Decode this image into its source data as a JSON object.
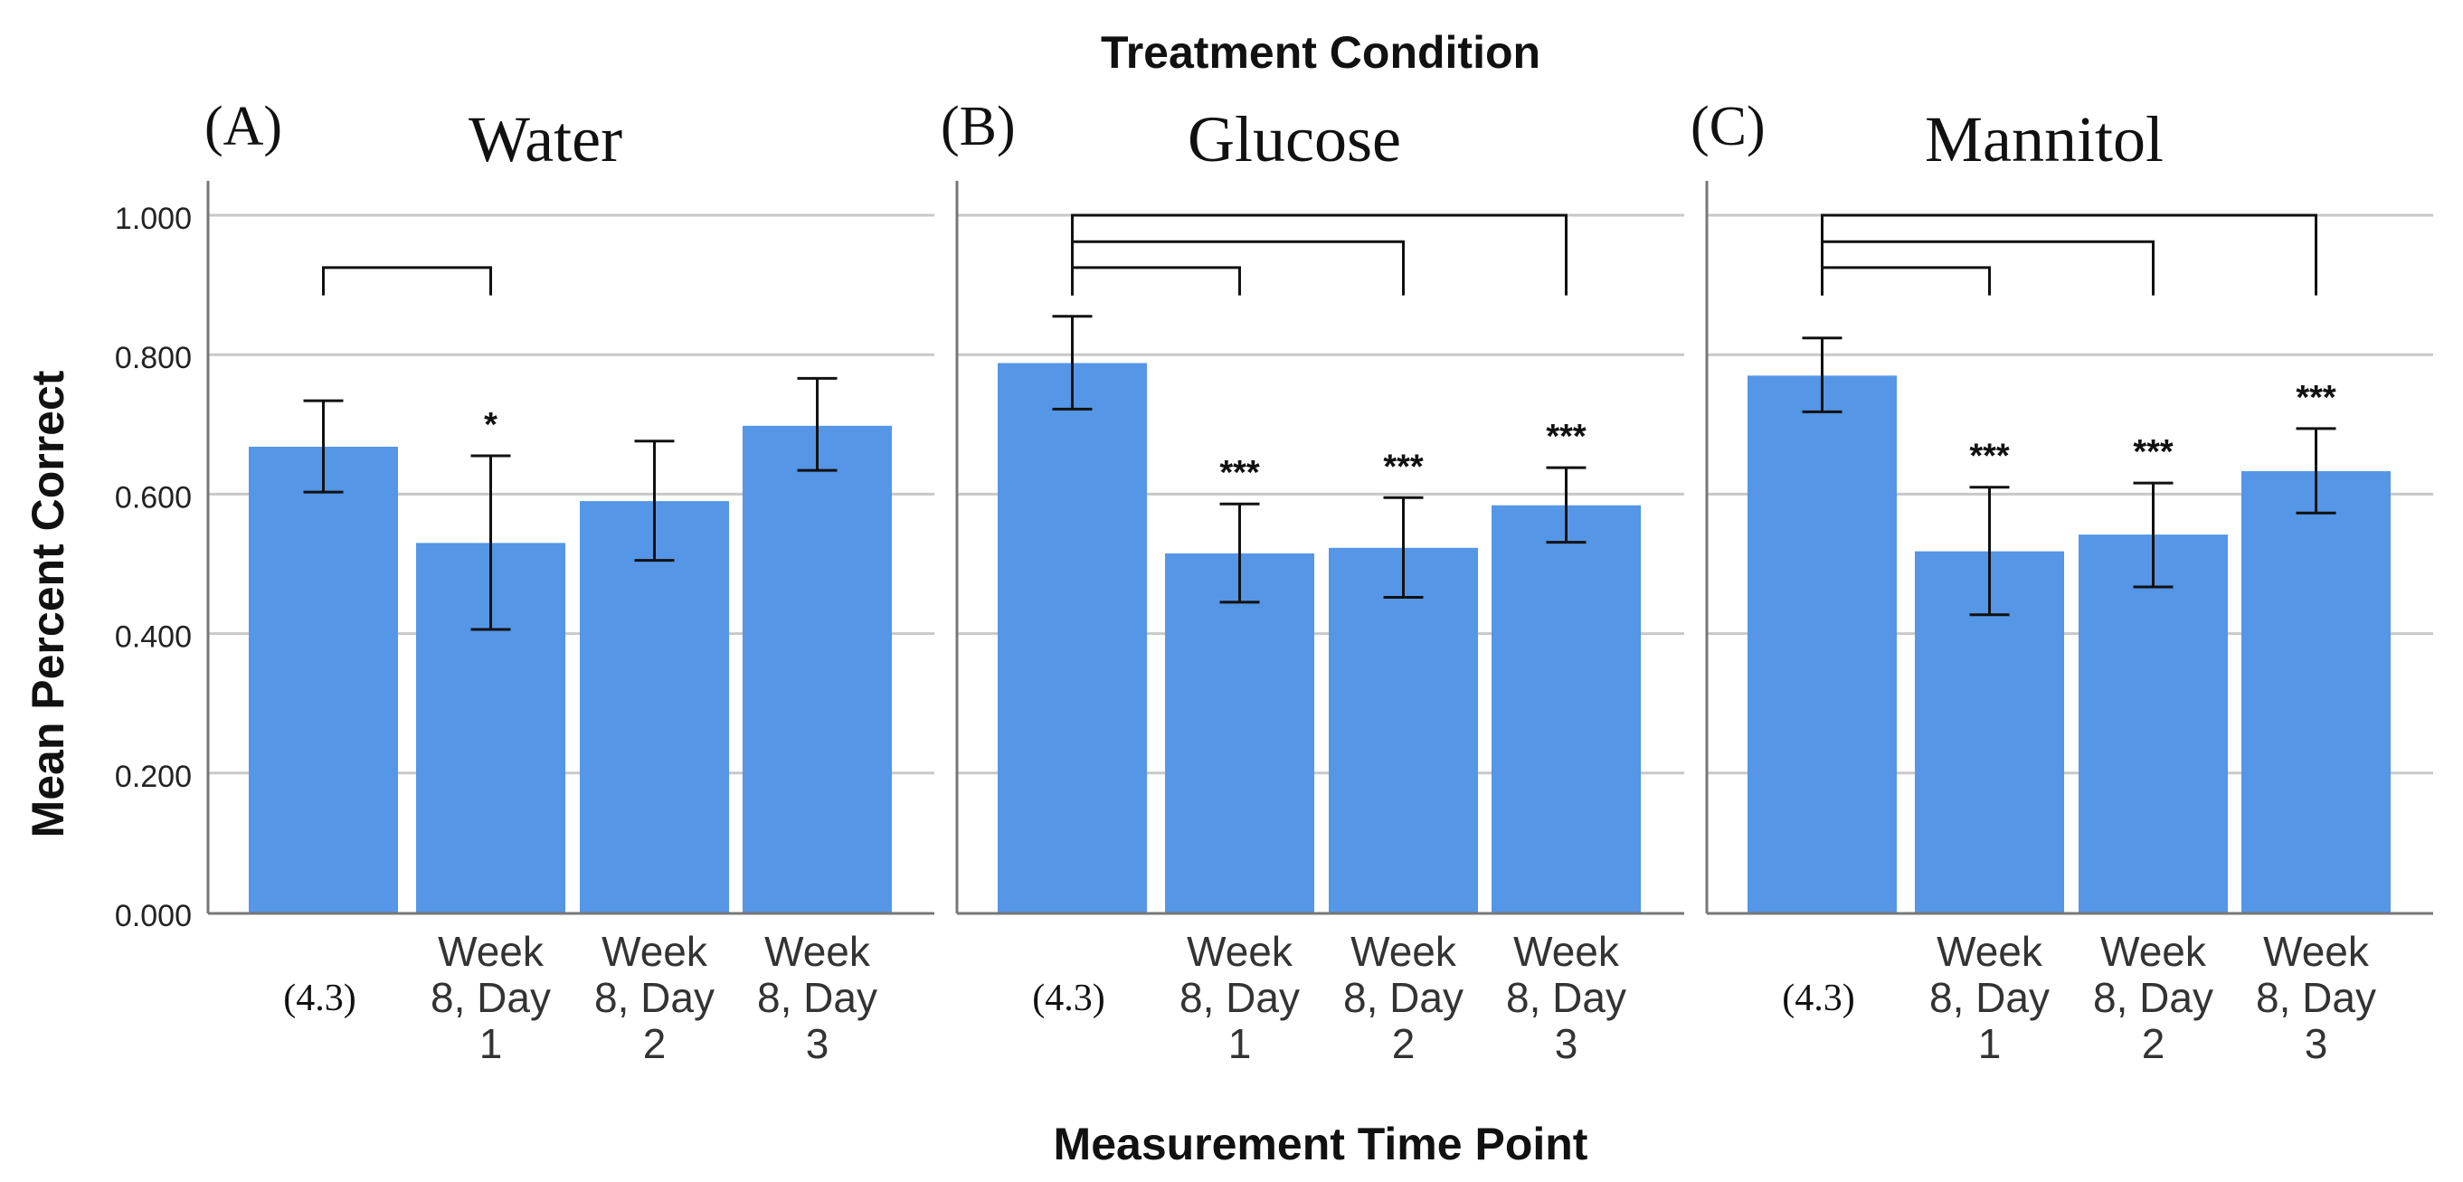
{
  "chart_data": {
    "type": "bar",
    "title": "Treatment Condition",
    "xlabel": "Measurement Time Point",
    "ylabel": "Mean Percent Correct",
    "ylim": [
      0,
      1.05
    ],
    "y_ticks": [
      "0.000",
      "0.200",
      "0.400",
      "0.600",
      "0.800",
      "1.000"
    ],
    "y_tick_values": [
      0,
      0.2,
      0.4,
      0.6,
      0.8,
      1.0
    ],
    "grid": true,
    "categories": [
      [
        "(4.3)"
      ],
      [
        "Week",
        "8, Day",
        "1"
      ],
      [
        "Week",
        "8, Day",
        "2"
      ],
      [
        "Week",
        "8, Day",
        "3"
      ]
    ],
    "bar_color": "#5596e6",
    "panels": [
      {
        "letter": "(A)",
        "title": "Water",
        "values": [
          0.668,
          0.53,
          0.59,
          0.698
        ],
        "error_low": [
          0.603,
          0.406,
          0.505,
          0.634
        ],
        "error_high": [
          0.734,
          0.655,
          0.676,
          0.766
        ],
        "significance": [
          {
            "from": 0,
            "to": 1,
            "label": "*",
            "level": 0.925
          }
        ]
      },
      {
        "letter": "(B)",
        "title": "Glucose",
        "values": [
          0.788,
          0.515,
          0.523,
          0.584
        ],
        "error_low": [
          0.722,
          0.445,
          0.452,
          0.531
        ],
        "error_high": [
          0.855,
          0.586,
          0.595,
          0.638
        ],
        "significance": [
          {
            "from": 0,
            "to": 1,
            "label": "***",
            "level": 0.925
          },
          {
            "from": 0,
            "to": 2,
            "label": "***",
            "level": 0.962
          },
          {
            "from": 0,
            "to": 3,
            "label": "***",
            "level": 1.0
          }
        ]
      },
      {
        "letter": "(C)",
        "title": "Mannitol",
        "values": [
          0.77,
          0.518,
          0.542,
          0.633
        ],
        "error_low": [
          0.718,
          0.427,
          0.467,
          0.573
        ],
        "error_high": [
          0.824,
          0.61,
          0.616,
          0.694
        ],
        "significance": [
          {
            "from": 0,
            "to": 1,
            "label": "***",
            "level": 0.925
          },
          {
            "from": 0,
            "to": 2,
            "label": "***",
            "level": 0.962
          },
          {
            "from": 0,
            "to": 3,
            "label": "***",
            "level": 1.0
          }
        ]
      }
    ]
  }
}
